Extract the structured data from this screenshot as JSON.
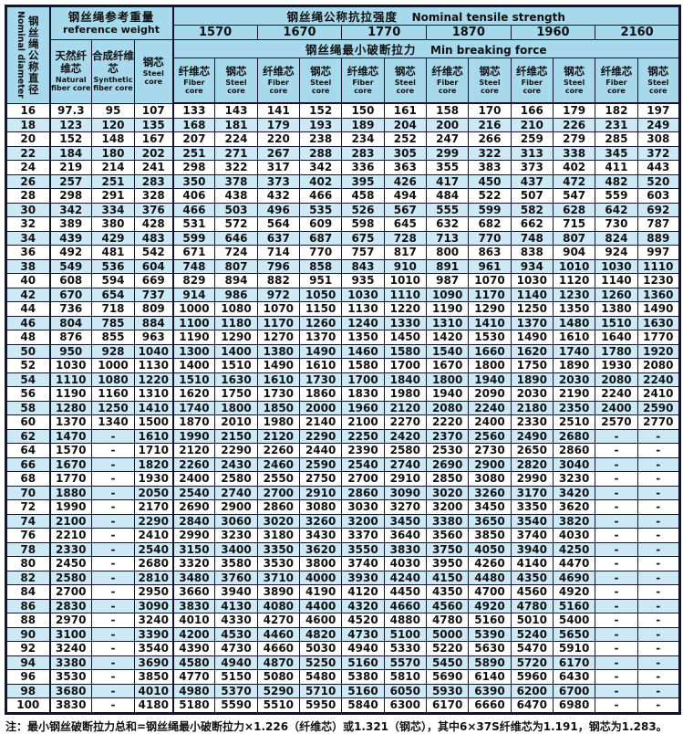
{
  "colors": {
    "header_bg": "#a7d8ec",
    "stripe_bg": "#cde9f6",
    "border": "#14142d"
  },
  "table": {
    "diameter_header": {
      "zh": "钢丝绳公称直径",
      "en": "Nominal diameter"
    },
    "weight_group": {
      "zh": "钢丝绳参考重量",
      "en": "reference weight"
    },
    "weight_columns": {
      "natural": {
        "zh": "天然纤维芯",
        "en": "Natural fiber core"
      },
      "synthetic": {
        "zh": "合成纤维芯",
        "en": "Synthetic fiber core"
      },
      "steel": {
        "zh": "钢芯",
        "en": "Steel core"
      }
    },
    "tensile_group": {
      "zh": "钢丝绳公称抗拉强度",
      "en": "Nominal tensile strength"
    },
    "breaking_group": {
      "zh": "钢丝绳最小破断拉力",
      "en": "Min breaking force"
    },
    "grades": [
      "1570",
      "1670",
      "1770",
      "1870",
      "1960",
      "2160"
    ],
    "sub_fiber": {
      "zh": "纤维芯",
      "en": "Fiber core"
    },
    "sub_steel": {
      "zh": "钢芯",
      "en": "Steel core"
    },
    "rows": [
      [
        "16",
        "97.3",
        "95",
        "107",
        "133",
        "143",
        "141",
        "152",
        "150",
        "161",
        "158",
        "170",
        "166",
        "179",
        "182",
        "197"
      ],
      [
        "18",
        "123",
        "120",
        "135",
        "168",
        "181",
        "179",
        "193",
        "189",
        "204",
        "200",
        "216",
        "210",
        "226",
        "231",
        "249"
      ],
      [
        "20",
        "152",
        "148",
        "167",
        "207",
        "224",
        "220",
        "238",
        "234",
        "252",
        "247",
        "266",
        "259",
        "279",
        "285",
        "308"
      ],
      [
        "22",
        "184",
        "180",
        "202",
        "251",
        "271",
        "267",
        "288",
        "283",
        "305",
        "299",
        "322",
        "313",
        "338",
        "345",
        "372"
      ],
      [
        "24",
        "219",
        "214",
        "241",
        "298",
        "322",
        "317",
        "342",
        "336",
        "363",
        "355",
        "383",
        "373",
        "402",
        "411",
        "443"
      ],
      [
        "26",
        "257",
        "251",
        "283",
        "350",
        "378",
        "373",
        "402",
        "395",
        "426",
        "417",
        "450",
        "437",
        "472",
        "482",
        "520"
      ],
      [
        "28",
        "298",
        "291",
        "328",
        "406",
        "438",
        "432",
        "466",
        "458",
        "494",
        "484",
        "522",
        "507",
        "547",
        "559",
        "603"
      ],
      [
        "30",
        "342",
        "334",
        "376",
        "466",
        "503",
        "496",
        "535",
        "526",
        "567",
        "555",
        "599",
        "582",
        "628",
        "642",
        "692"
      ],
      [
        "32",
        "389",
        "380",
        "428",
        "531",
        "572",
        "564",
        "609",
        "598",
        "645",
        "632",
        "682",
        "662",
        "715",
        "730",
        "787"
      ],
      [
        "34",
        "439",
        "429",
        "483",
        "599",
        "646",
        "637",
        "687",
        "675",
        "728",
        "713",
        "770",
        "748",
        "807",
        "824",
        "889"
      ],
      [
        "36",
        "492",
        "481",
        "542",
        "671",
        "724",
        "714",
        "770",
        "757",
        "817",
        "800",
        "863",
        "838",
        "904",
        "924",
        "997"
      ],
      [
        "38",
        "549",
        "536",
        "604",
        "748",
        "807",
        "796",
        "858",
        "843",
        "910",
        "891",
        "961",
        "934",
        "1010",
        "1030",
        "1110"
      ],
      [
        "40",
        "608",
        "594",
        "669",
        "829",
        "894",
        "882",
        "951",
        "935",
        "1010",
        "987",
        "1070",
        "1030",
        "1120",
        "1140",
        "1230"
      ],
      [
        "42",
        "670",
        "654",
        "737",
        "914",
        "986",
        "972",
        "1050",
        "1030",
        "1110",
        "1090",
        "1170",
        "1140",
        "1230",
        "1260",
        "1360"
      ],
      [
        "44",
        "736",
        "718",
        "809",
        "1000",
        "1080",
        "1070",
        "1150",
        "1130",
        "1220",
        "1190",
        "1290",
        "1250",
        "1350",
        "1380",
        "1490"
      ],
      [
        "46",
        "804",
        "785",
        "884",
        "1100",
        "1180",
        "1170",
        "1260",
        "1240",
        "1330",
        "1310",
        "1410",
        "1370",
        "1480",
        "1510",
        "1630"
      ],
      [
        "48",
        "876",
        "855",
        "963",
        "1190",
        "1290",
        "1270",
        "1370",
        "1350",
        "1450",
        "1420",
        "1530",
        "1490",
        "1610",
        "1640",
        "1770"
      ],
      [
        "50",
        "950",
        "928",
        "1040",
        "1300",
        "1400",
        "1380",
        "1490",
        "1460",
        "1580",
        "1540",
        "1660",
        "1620",
        "1740",
        "1780",
        "1920"
      ],
      [
        "52",
        "1030",
        "1000",
        "1130",
        "1400",
        "1510",
        "1490",
        "1610",
        "1580",
        "1700",
        "1670",
        "1800",
        "1750",
        "1890",
        "1930",
        "2080"
      ],
      [
        "54",
        "1110",
        "1080",
        "1220",
        "1510",
        "1630",
        "1610",
        "1730",
        "1700",
        "1840",
        "1800",
        "1940",
        "1890",
        "2030",
        "2080",
        "2240"
      ],
      [
        "56",
        "1190",
        "1160",
        "1310",
        "1620",
        "1750",
        "1730",
        "1860",
        "1830",
        "1980",
        "1940",
        "2090",
        "2030",
        "2190",
        "2240",
        "2410"
      ],
      [
        "58",
        "1280",
        "1250",
        "1410",
        "1740",
        "1800",
        "1850",
        "2000",
        "1960",
        "2120",
        "2080",
        "2240",
        "2180",
        "2350",
        "2400",
        "2590"
      ],
      [
        "60",
        "1370",
        "1340",
        "1500",
        "1870",
        "2010",
        "1980",
        "2140",
        "2100",
        "2270",
        "2220",
        "2400",
        "2330",
        "2510",
        "2570",
        "2770"
      ],
      [
        "62",
        "1470",
        "-",
        "1610",
        "1990",
        "2150",
        "2120",
        "2290",
        "2250",
        "2420",
        "2370",
        "2560",
        "2490",
        "2680",
        "-",
        "-"
      ],
      [
        "64",
        "1570",
        "-",
        "1710",
        "2120",
        "2290",
        "2260",
        "2440",
        "2390",
        "2580",
        "2530",
        "2730",
        "2650",
        "2860",
        "-",
        "-"
      ],
      [
        "66",
        "1670",
        "-",
        "1820",
        "2260",
        "2430",
        "2460",
        "2590",
        "2540",
        "2740",
        "2690",
        "2900",
        "2820",
        "3040",
        "-",
        "-"
      ],
      [
        "68",
        "1770",
        "-",
        "1930",
        "2400",
        "2580",
        "2550",
        "2750",
        "2700",
        "2910",
        "2850",
        "3080",
        "2990",
        "3230",
        "-",
        "-"
      ],
      [
        "70",
        "1880",
        "-",
        "2050",
        "2540",
        "2740",
        "2700",
        "2910",
        "2860",
        "3090",
        "3020",
        "3260",
        "3170",
        "3420",
        "-",
        "-"
      ],
      [
        "72",
        "1990",
        "-",
        "2170",
        "2690",
        "2900",
        "2860",
        "3080",
        "3030",
        "3270",
        "3200",
        "3450",
        "3350",
        "3620",
        "-",
        "-"
      ],
      [
        "74",
        "2100",
        "-",
        "2290",
        "2840",
        "3060",
        "3020",
        "3260",
        "3200",
        "3450",
        "3380",
        "3650",
        "3540",
        "3820",
        "-",
        "-"
      ],
      [
        "76",
        "2210",
        "-",
        "2410",
        "2990",
        "3230",
        "3180",
        "3430",
        "3370",
        "3640",
        "3560",
        "3850",
        "3740",
        "4030",
        "-",
        "-"
      ],
      [
        "78",
        "2330",
        "-",
        "2540",
        "3150",
        "3400",
        "3350",
        "3620",
        "3550",
        "3830",
        "3750",
        "4050",
        "3940",
        "4250",
        "-",
        "-"
      ],
      [
        "80",
        "2450",
        "-",
        "2680",
        "3320",
        "3580",
        "3530",
        "3800",
        "3740",
        "4030",
        "3950",
        "4260",
        "4140",
        "4470",
        "-",
        "-"
      ],
      [
        "82",
        "2580",
        "-",
        "2810",
        "3480",
        "3760",
        "3710",
        "4000",
        "3930",
        "4240",
        "4150",
        "4480",
        "4350",
        "4690",
        "-",
        "-"
      ],
      [
        "84",
        "2700",
        "-",
        "2950",
        "3660",
        "3940",
        "3890",
        "4190",
        "4120",
        "4450",
        "4350",
        "4700",
        "4560",
        "4920",
        "-",
        "-"
      ],
      [
        "86",
        "2830",
        "-",
        "3090",
        "3830",
        "4130",
        "4080",
        "4400",
        "4320",
        "4660",
        "4560",
        "4920",
        "4780",
        "5160",
        "-",
        "-"
      ],
      [
        "88",
        "2970",
        "-",
        "3240",
        "4010",
        "4330",
        "4270",
        "4600",
        "4520",
        "4880",
        "4780",
        "5160",
        "5010",
        "5400",
        "-",
        "-"
      ],
      [
        "90",
        "3100",
        "-",
        "3390",
        "4200",
        "4530",
        "4460",
        "4820",
        "4730",
        "5100",
        "5000",
        "5390",
        "5240",
        "5650",
        "-",
        "-"
      ],
      [
        "92",
        "3240",
        "-",
        "3540",
        "4390",
        "4730",
        "4660",
        "5030",
        "4940",
        "5330",
        "5220",
        "5630",
        "5470",
        "5910",
        "-",
        "-"
      ],
      [
        "94",
        "3380",
        "-",
        "3690",
        "4580",
        "4940",
        "4870",
        "5250",
        "5160",
        "5570",
        "5450",
        "5890",
        "5720",
        "6170",
        "-",
        "-"
      ],
      [
        "96",
        "3530",
        "-",
        "3850",
        "4770",
        "5150",
        "5080",
        "5480",
        "5380",
        "5810",
        "5690",
        "6140",
        "5960",
        "6430",
        "-",
        "-"
      ],
      [
        "98",
        "3680",
        "-",
        "4010",
        "4980",
        "5370",
        "5290",
        "5710",
        "5160",
        "6050",
        "5930",
        "6390",
        "6200",
        "6700",
        "-",
        "-"
      ],
      [
        "100",
        "3830",
        "-",
        "4180",
        "5180",
        "5590",
        "5510",
        "5950",
        "5840",
        "6300",
        "6170",
        "6660",
        "6470",
        "6980",
        "-",
        "-"
      ]
    ]
  },
  "note": "注：最小钢丝破断拉力总和=钢丝绳最小破断拉力×1.226（纤维芯）或1.321（钢芯），其中6×37S纤维芯为1.191，钢芯为1.283。"
}
